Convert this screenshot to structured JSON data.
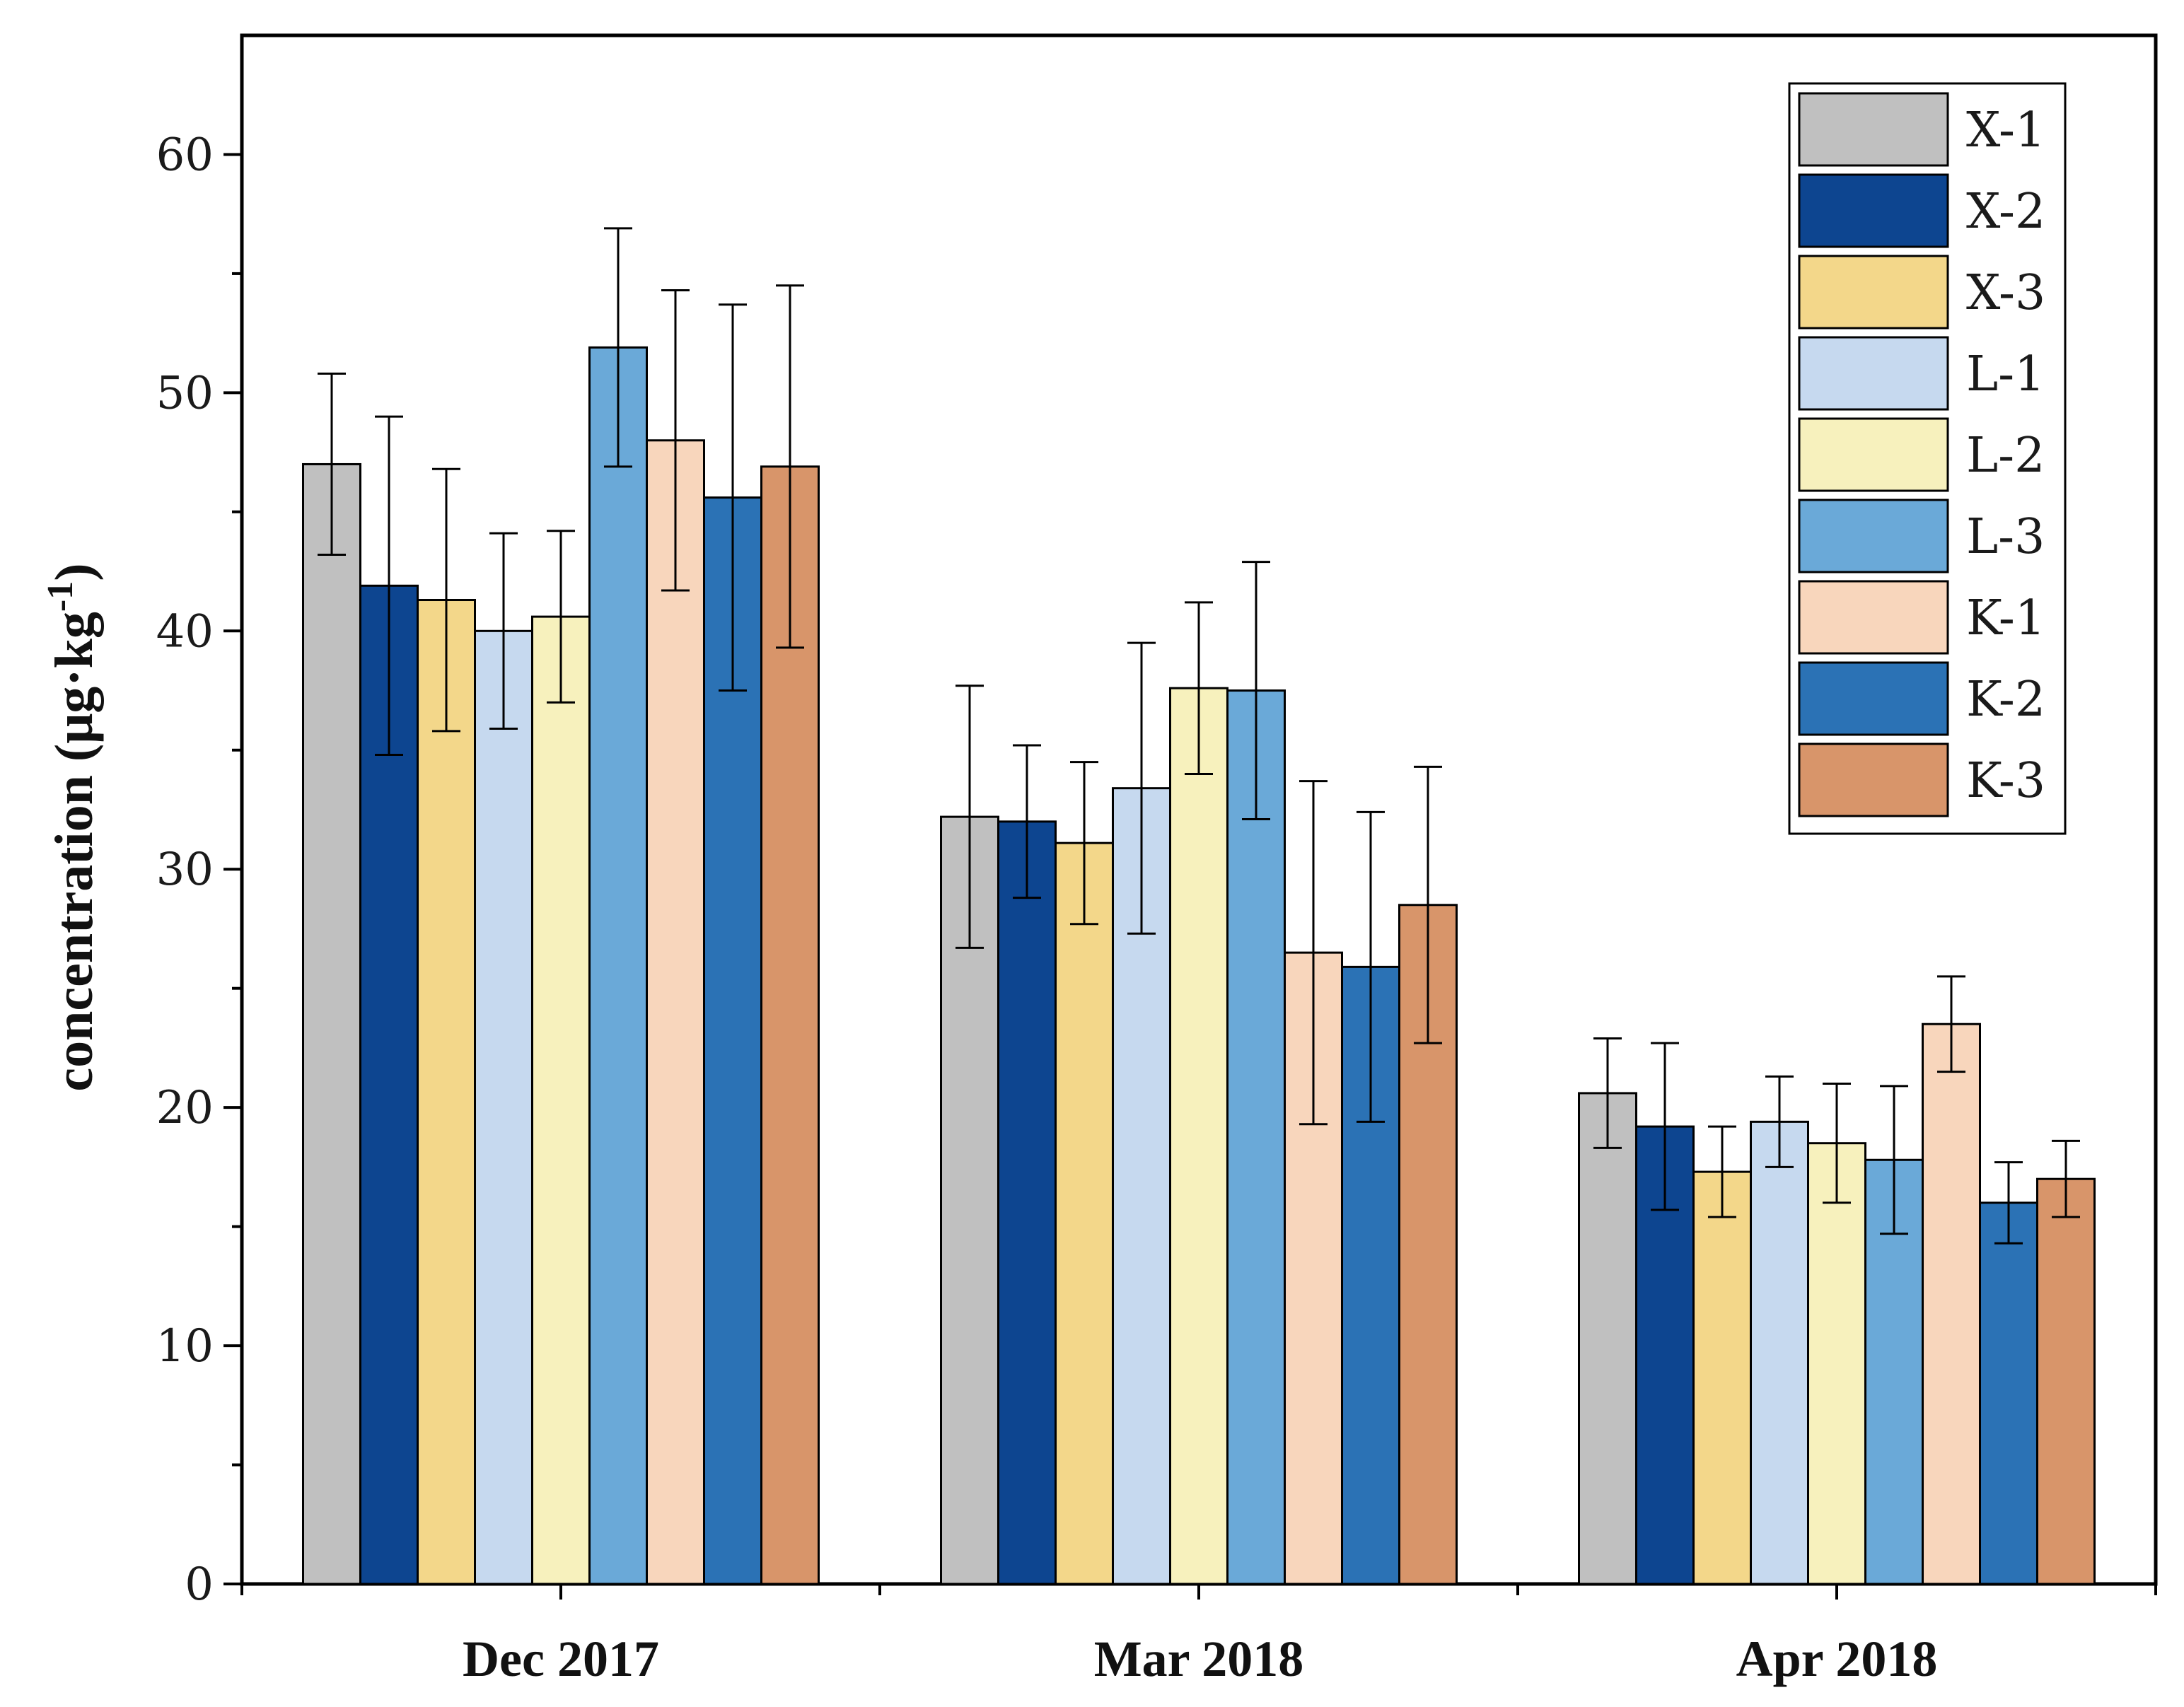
{
  "chart_data": {
    "type": "bar",
    "title": "",
    "xlabel": "",
    "ylabel": "concentration (μg·kg",
    "ylabel_superscript": "-1",
    "ylabel_suffix": ")",
    "ylim": [
      0,
      65
    ],
    "yticks": [
      0,
      10,
      20,
      30,
      40,
      50,
      60
    ],
    "legend_position": "top-right",
    "categories": [
      "Dec 2017",
      "Mar 2018",
      "Apr 2018"
    ],
    "series": [
      {
        "name": "X-1",
        "color": "#c0c0c0",
        "values": [
          47.0,
          32.2,
          20.6
        ],
        "errors": [
          3.8,
          5.5,
          2.3
        ]
      },
      {
        "name": "X-2",
        "color": "#0d4590",
        "values": [
          41.9,
          32.0,
          19.2
        ],
        "errors": [
          7.1,
          3.2,
          3.5
        ]
      },
      {
        "name": "X-3",
        "color": "#f3d78a",
        "values": [
          41.3,
          31.1,
          17.3
        ],
        "errors": [
          5.5,
          3.4,
          1.9
        ]
      },
      {
        "name": "L-1",
        "color": "#c6d9ef",
        "values": [
          40.0,
          33.4,
          19.4
        ],
        "errors": [
          4.1,
          6.1,
          1.9
        ]
      },
      {
        "name": "L-2",
        "color": "#f7f1bd",
        "values": [
          40.6,
          37.6,
          18.5
        ],
        "errors": [
          3.6,
          3.6,
          2.5
        ]
      },
      {
        "name": "L-3",
        "color": "#6aa9d8",
        "values": [
          51.9,
          37.5,
          17.8
        ],
        "errors": [
          5.0,
          5.4,
          3.1
        ]
      },
      {
        "name": "K-1",
        "color": "#f8d6bc",
        "values": [
          48.0,
          26.5,
          23.5
        ],
        "errors": [
          6.3,
          7.2,
          2.0
        ]
      },
      {
        "name": "K-2",
        "color": "#2b72b5",
        "values": [
          45.6,
          25.9,
          16.0
        ],
        "errors": [
          8.1,
          6.5,
          1.7
        ]
      },
      {
        "name": "K-3",
        "color": "#d8956a",
        "values": [
          46.9,
          28.5,
          17.0
        ],
        "errors": [
          7.6,
          5.8,
          1.6
        ]
      }
    ]
  }
}
